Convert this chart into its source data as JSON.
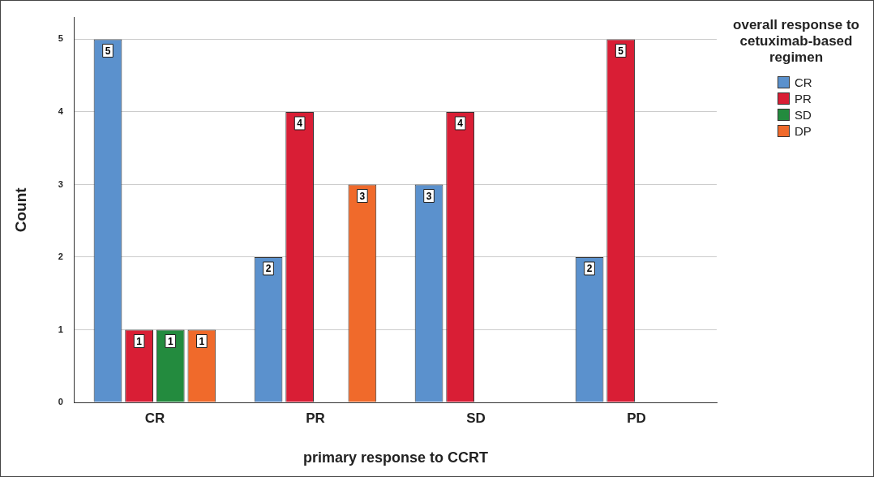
{
  "chart_data": {
    "type": "bar",
    "xlabel": "primary response to CCRT",
    "ylabel": "Count",
    "legend_title": "overall response to cetuximab-based regimen",
    "categories": [
      "CR",
      "PR",
      "SD",
      "PD"
    ],
    "series": [
      {
        "name": "CR",
        "color": "#5b91cd",
        "values": [
          5,
          2,
          3,
          2
        ]
      },
      {
        "name": "PR",
        "color": "#d91e35",
        "values": [
          1,
          4,
          4,
          5
        ]
      },
      {
        "name": "SD",
        "color": "#238b3e",
        "values": [
          1,
          null,
          null,
          null
        ]
      },
      {
        "name": "DP",
        "color": "#f06a2b",
        "values": [
          1,
          3,
          null,
          null
        ]
      }
    ],
    "ylim": [
      0,
      5.3
    ],
    "yticks": [
      0,
      1,
      2,
      3,
      4,
      5
    ],
    "grid": "y",
    "legend": "top right",
    "data_labels": true
  }
}
